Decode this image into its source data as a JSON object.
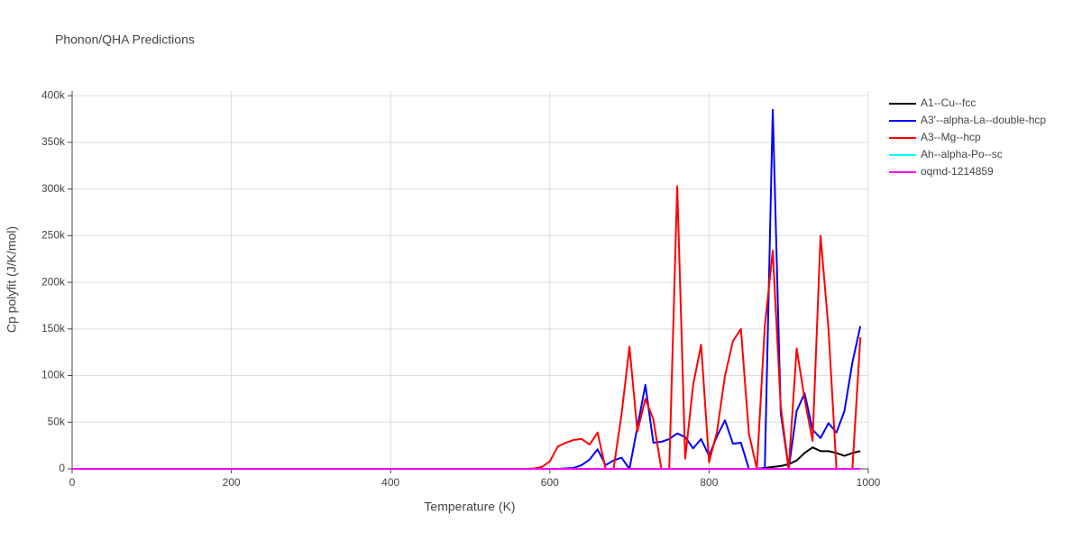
{
  "chart_data": {
    "type": "line",
    "title": "Phonon/QHA Predictions",
    "x_label": "Temperature (K)",
    "y_label": "Cp polyfit (J/K/mol)",
    "x": [
      0,
      10,
      20,
      30,
      40,
      50,
      60,
      70,
      80,
      90,
      100,
      110,
      120,
      130,
      140,
      150,
      160,
      170,
      180,
      190,
      200,
      210,
      220,
      230,
      240,
      250,
      260,
      270,
      280,
      290,
      300,
      310,
      320,
      330,
      340,
      350,
      360,
      370,
      380,
      390,
      400,
      410,
      420,
      430,
      440,
      450,
      460,
      470,
      480,
      490,
      500,
      510,
      520,
      530,
      540,
      550,
      560,
      570,
      580,
      590,
      600,
      610,
      620,
      630,
      640,
      650,
      660,
      670,
      680,
      690,
      700,
      710,
      720,
      730,
      740,
      750,
      760,
      770,
      780,
      790,
      800,
      810,
      820,
      830,
      840,
      850,
      860,
      870,
      880,
      890,
      900,
      910,
      920,
      930,
      940,
      950,
      960,
      970,
      980,
      990
    ],
    "series": [
      {
        "name": "A1--Cu--fcc",
        "color": "#000000",
        "values": [
          0,
          0,
          0,
          0,
          0,
          0,
          0,
          0,
          0,
          0,
          0,
          0,
          0,
          0,
          0,
          0,
          0,
          0,
          0,
          0,
          0,
          0,
          0,
          0,
          0,
          0,
          0,
          0,
          0,
          0,
          0,
          0,
          0,
          0,
          0,
          0,
          0,
          0,
          0,
          0,
          0,
          0,
          0,
          0,
          0,
          0,
          0,
          0,
          0,
          0,
          0,
          0,
          0,
          0,
          0,
          0,
          0,
          0,
          0,
          0,
          0,
          0,
          0,
          0,
          0,
          0,
          0,
          0,
          0,
          0,
          0,
          0,
          0,
          0,
          0,
          0,
          0,
          0,
          0,
          0,
          0,
          0,
          0,
          0,
          0,
          0,
          0,
          1000,
          2000,
          3000,
          5000,
          9000,
          17000,
          23000,
          19000,
          19000,
          17000,
          14000,
          17000,
          19000
        ]
      },
      {
        "name": "A3'--alpha-La--double-hcp",
        "color": "#0000ff",
        "values": [
          0,
          0,
          0,
          0,
          0,
          0,
          0,
          0,
          0,
          0,
          0,
          0,
          0,
          0,
          0,
          0,
          0,
          0,
          0,
          0,
          0,
          0,
          0,
          0,
          0,
          0,
          0,
          0,
          0,
          0,
          0,
          0,
          0,
          0,
          0,
          0,
          0,
          0,
          0,
          0,
          0,
          0,
          0,
          0,
          0,
          0,
          0,
          0,
          0,
          0,
          0,
          0,
          0,
          0,
          0,
          0,
          0,
          0,
          0,
          0,
          0,
          0,
          500,
          1000,
          4000,
          10000,
          21000,
          4000,
          9000,
          12000,
          0,
          45000,
          90000,
          28000,
          29000,
          32000,
          38000,
          34000,
          22000,
          32000,
          14000,
          35000,
          52000,
          27000,
          28000,
          0,
          0,
          1000,
          385000,
          60000,
          0,
          62000,
          81000,
          42000,
          33000,
          49000,
          39000,
          62000,
          114000,
          153000
        ]
      },
      {
        "name": "A3--Mg--hcp",
        "color": "#ff0000",
        "values": [
          0,
          0,
          0,
          0,
          0,
          0,
          0,
          0,
          0,
          0,
          0,
          0,
          0,
          0,
          0,
          0,
          0,
          0,
          0,
          0,
          0,
          0,
          0,
          0,
          0,
          0,
          0,
          0,
          0,
          0,
          0,
          0,
          0,
          0,
          0,
          0,
          0,
          0,
          0,
          0,
          0,
          0,
          0,
          0,
          0,
          0,
          0,
          0,
          0,
          0,
          0,
          0,
          0,
          0,
          0,
          0,
          0,
          0,
          500,
          2000,
          8000,
          24000,
          28000,
          31000,
          32000,
          26000,
          39000,
          0,
          0,
          58000,
          131000,
          40000,
          75000,
          53000,
          0,
          0,
          303000,
          11000,
          90000,
          133000,
          7000,
          40000,
          100000,
          137000,
          150000,
          38000,
          0,
          153000,
          234000,
          67000,
          0,
          129000,
          75000,
          30000,
          250000,
          150000,
          0,
          0,
          0,
          141000
        ]
      },
      {
        "name": "Ah--alpha-Po--sc",
        "color": "#00ffff",
        "values": [
          0,
          0,
          0,
          0,
          0,
          0,
          0,
          0,
          0,
          0,
          0,
          0,
          0,
          0,
          0,
          0,
          0,
          0,
          0,
          0,
          0,
          0,
          0,
          0,
          0,
          0,
          0,
          0,
          0,
          0,
          0,
          0,
          0,
          0,
          0,
          0,
          0,
          0,
          0,
          0,
          0,
          0,
          0,
          0,
          0,
          0,
          0,
          0,
          0,
          0,
          0,
          0,
          0,
          0,
          0,
          0,
          0,
          0,
          0,
          0,
          0,
          0,
          0,
          0,
          0,
          0,
          0,
          0,
          0,
          0,
          0,
          0,
          0,
          0,
          0,
          0,
          0,
          0,
          0,
          0,
          0,
          0,
          0,
          0,
          0,
          0,
          0,
          0,
          0,
          0,
          0,
          0,
          0,
          0,
          0,
          0,
          0,
          0,
          0,
          0
        ]
      },
      {
        "name": "oqmd-1214859",
        "color": "#ff00ff",
        "values": [
          0,
          0,
          0,
          0,
          0,
          0,
          0,
          0,
          0,
          0,
          0,
          0,
          0,
          0,
          0,
          0,
          0,
          0,
          0,
          0,
          0,
          0,
          0,
          0,
          0,
          0,
          0,
          0,
          0,
          0,
          0,
          0,
          0,
          0,
          0,
          0,
          0,
          0,
          0,
          0,
          0,
          0,
          0,
          0,
          0,
          0,
          0,
          0,
          0,
          0,
          0,
          0,
          0,
          0,
          0,
          0,
          0,
          0,
          0,
          0,
          0,
          0,
          0,
          0,
          0,
          0,
          0,
          0,
          0,
          0,
          0,
          0,
          0,
          0,
          0,
          0,
          0,
          0,
          0,
          0,
          0,
          0,
          0,
          0,
          0,
          0,
          0,
          0,
          0,
          0,
          0,
          0,
          0,
          0,
          0,
          0,
          0,
          0,
          0,
          0
        ]
      }
    ],
    "xlim": [
      0,
      1000
    ],
    "xticks": [
      0,
      200,
      400,
      600,
      800,
      1000
    ],
    "ylim": [
      0,
      405000
    ],
    "yticks": [
      0,
      {
        "value": 50000,
        "label": "50k"
      },
      {
        "value": 100000,
        "label": "100k"
      },
      {
        "value": 150000,
        "label": "150k"
      },
      {
        "value": 200000,
        "label": "200k"
      },
      {
        "value": 250000,
        "label": "250k"
      },
      {
        "value": 300000,
        "label": "300k"
      },
      {
        "value": 350000,
        "label": "350k"
      },
      {
        "value": 400000,
        "label": "400k"
      }
    ],
    "grid": true,
    "legend": "right"
  }
}
